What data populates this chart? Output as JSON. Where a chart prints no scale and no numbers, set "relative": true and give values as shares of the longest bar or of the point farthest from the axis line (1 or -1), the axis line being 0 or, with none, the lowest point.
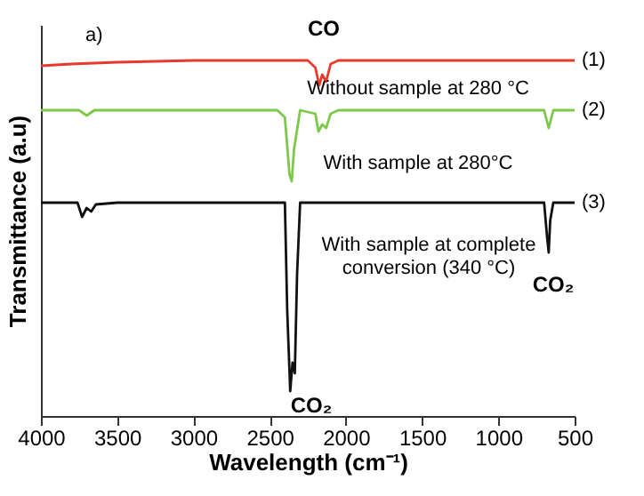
{
  "chart_data": {
    "type": "line",
    "xlabel": "Wavelength (cm⁻¹)",
    "ylabel": "Transmittance (a.u)",
    "relative": true,
    "xlim": [
      4000,
      500
    ],
    "xticks": [
      4000,
      3500,
      3000,
      2500,
      2000,
      1500,
      1000,
      500
    ],
    "grid": false,
    "legend": false,
    "marker": "none",
    "line_style": "solid",
    "series": [
      {
        "color": "#e8392b",
        "x": [
          4000,
          3800,
          3500,
          3000,
          2600,
          2250,
          2200,
          2175,
          2155,
          2130,
          2100,
          2050,
          1500,
          1000,
          500
        ],
        "values": [
          0.985,
          0.99,
          0.995,
          1.0,
          1.0,
          1.0,
          0.98,
          0.93,
          0.96,
          0.94,
          0.99,
          1.0,
          1.0,
          1.0,
          1.0
        ]
      },
      {
        "color": "#7dc84a",
        "x": [
          4000,
          3750,
          3700,
          3650,
          2450,
          2400,
          2370,
          2355,
          2340,
          2300,
          2200,
          2180,
          2155,
          2130,
          2100,
          2050,
          700,
          670,
          640,
          500
        ],
        "values": [
          0.86,
          0.86,
          0.845,
          0.86,
          0.86,
          0.84,
          0.68,
          0.66,
          0.75,
          0.86,
          0.85,
          0.8,
          0.82,
          0.81,
          0.85,
          0.86,
          0.86,
          0.81,
          0.86,
          0.86
        ]
      },
      {
        "color": "#111111",
        "x": [
          4000,
          3760,
          3730,
          3700,
          3670,
          3640,
          3500,
          2400,
          2385,
          2365,
          2350,
          2335,
          2320,
          2300,
          700,
          680,
          670,
          660,
          640,
          500
        ],
        "values": [
          0.6,
          0.6,
          0.56,
          0.585,
          0.575,
          0.595,
          0.6,
          0.6,
          0.3,
          0.07,
          0.15,
          0.12,
          0.4,
          0.6,
          0.6,
          0.5,
          0.46,
          0.55,
          0.6,
          0.6
        ]
      }
    ],
    "annotations": [
      "a)",
      "CO",
      "CO₂",
      "CO₂",
      "Without sample at 280 °C",
      "With sample at 280°C",
      "With sample at complete\nconversion (340 °C)",
      "(1)",
      "(2)",
      "(3)"
    ]
  }
}
